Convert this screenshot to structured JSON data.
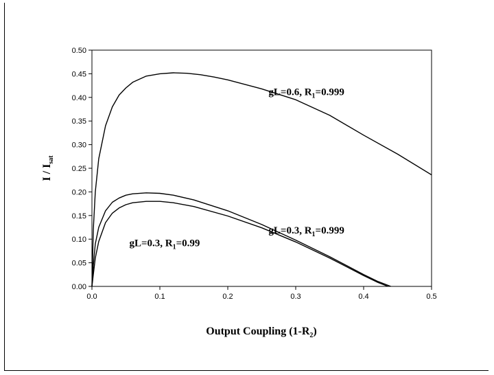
{
  "chart_data": {
    "type": "line",
    "title": "",
    "xlabel": {
      "main": "Output Coupling (1-R",
      "sub": "2",
      "tail": ")"
    },
    "ylabel": {
      "main": "I / I",
      "sub": "sat"
    },
    "xlim": [
      0,
      0.5
    ],
    "ylim": [
      0,
      0.5
    ],
    "xticks": [
      0.0,
      0.1,
      0.2,
      0.3,
      0.4,
      0.5
    ],
    "xtick_labels": [
      "0.0",
      "0.1",
      "0.2",
      "0.3",
      "0.4",
      "0.5"
    ],
    "yticks": [
      0.0,
      0.05,
      0.1,
      0.15,
      0.2,
      0.25,
      0.3,
      0.35,
      0.4,
      0.45,
      0.5
    ],
    "ytick_labels": [
      "0.00",
      "0.05",
      "0.10",
      "0.15",
      "0.20",
      "0.25",
      "0.30",
      "0.35",
      "0.40",
      "0.45",
      "0.50"
    ],
    "grid": false,
    "series": [
      {
        "x": [
          0.0,
          0.002,
          0.005,
          0.01,
          0.02,
          0.03,
          0.04,
          0.05,
          0.06,
          0.08,
          0.1,
          0.12,
          0.14,
          0.16,
          0.18,
          0.2,
          0.25,
          0.3,
          0.35,
          0.4,
          0.45,
          0.5
        ],
        "y": [
          0.0,
          0.12,
          0.2,
          0.27,
          0.34,
          0.38,
          0.405,
          0.42,
          0.432,
          0.445,
          0.45,
          0.452,
          0.451,
          0.448,
          0.443,
          0.437,
          0.418,
          0.395,
          0.362,
          0.32,
          0.28,
          0.236
        ],
        "annotation": {
          "main": "gL=0.6, R",
          "sub": "1",
          "tail": "=0.999",
          "x": 0.26,
          "y": 0.405
        }
      },
      {
        "x": [
          0.0,
          0.002,
          0.005,
          0.01,
          0.02,
          0.03,
          0.04,
          0.05,
          0.06,
          0.08,
          0.1,
          0.12,
          0.15,
          0.2,
          0.25,
          0.3,
          0.35,
          0.4,
          0.42,
          0.44
        ],
        "y": [
          0.0,
          0.045,
          0.09,
          0.125,
          0.16,
          0.178,
          0.187,
          0.193,
          0.196,
          0.198,
          0.197,
          0.193,
          0.183,
          0.16,
          0.131,
          0.098,
          0.063,
          0.025,
          0.011,
          0.0
        ],
        "annotation": {
          "main": "gL=0.3, R",
          "sub": "1",
          "tail": "=0.999",
          "x": 0.26,
          "y": 0.112
        }
      },
      {
        "x": [
          0.0,
          0.002,
          0.005,
          0.01,
          0.02,
          0.03,
          0.04,
          0.05,
          0.06,
          0.08,
          0.1,
          0.12,
          0.15,
          0.2,
          0.25,
          0.3,
          0.35,
          0.4,
          0.42,
          0.436
        ],
        "y": [
          0.0,
          0.025,
          0.06,
          0.095,
          0.135,
          0.155,
          0.166,
          0.173,
          0.177,
          0.18,
          0.18,
          0.177,
          0.169,
          0.149,
          0.124,
          0.094,
          0.06,
          0.023,
          0.009,
          0.0
        ],
        "annotation": {
          "main": "gL=0.3, R",
          "sub": "1",
          "tail": "=0.99",
          "x": 0.055,
          "y": 0.085
        }
      }
    ]
  }
}
